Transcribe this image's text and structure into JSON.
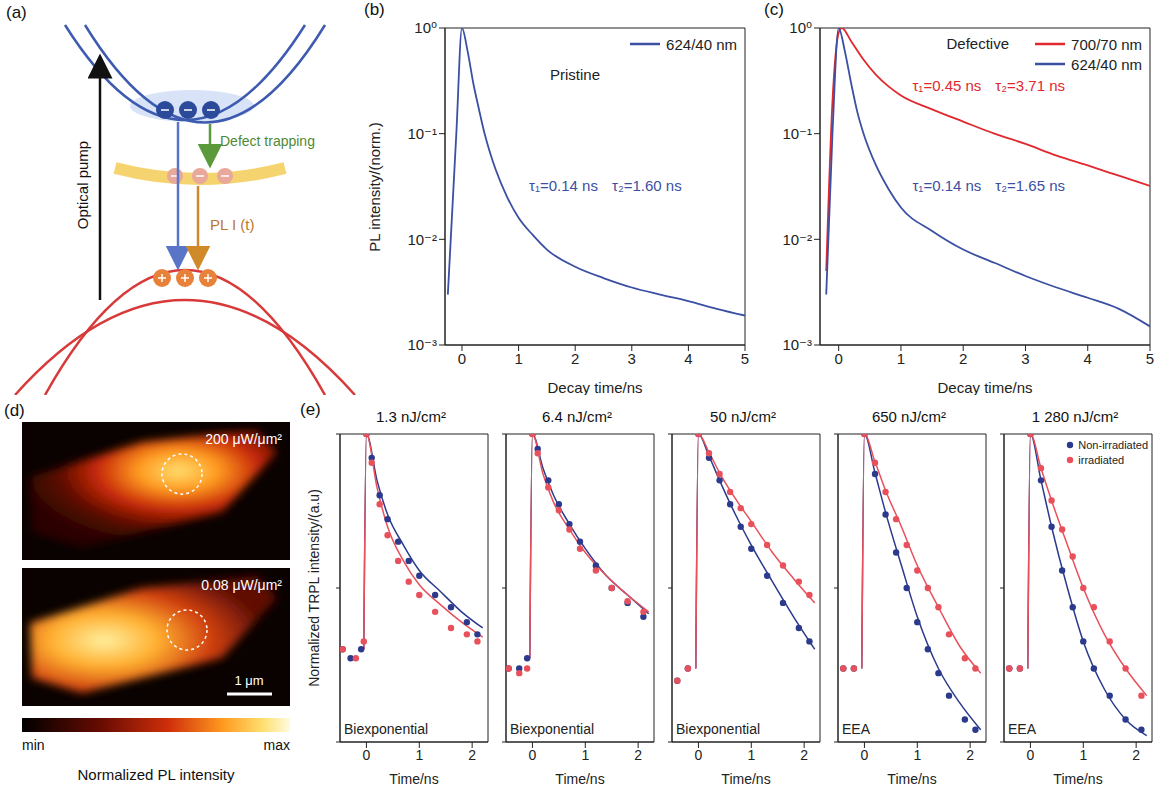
{
  "panel_a": {
    "panel_label": "(a)",
    "pump_label": "Optical pump",
    "trapping_label": "Defect trapping",
    "emission_label": "PL I (t)"
  },
  "panel_d": {
    "panel_label": "(d)",
    "maps": [
      {
        "label": "200 μW/μm²"
      },
      {
        "label": "0.08 μW/μm²"
      }
    ],
    "scale_bar": "1 μm",
    "colorbar": {
      "min_label": "min",
      "max_label": "max",
      "title": "Normalized PL intensity"
    }
  },
  "chart_data": [
    {
      "panel_label": "(b)",
      "type": "line",
      "annotation": "Pristine",
      "x_label": "Decay time/ns",
      "y_label": "PL intensity/(norm.)",
      "log": "y",
      "xlim": [
        -0.3,
        5
      ],
      "xticks": [
        0,
        1,
        2,
        3,
        4,
        5
      ],
      "ylim": [
        0.001,
        1
      ],
      "yticks": [
        {
          "value": 0.001,
          "label": "10⁻³"
        },
        {
          "value": 0.01,
          "label": "10⁻²"
        },
        {
          "value": 0.1,
          "label": "10⁻¹"
        },
        {
          "value": 1,
          "label": "10⁰"
        }
      ],
      "legend": "upper right",
      "series": [
        {
          "name": "624/40 nm",
          "color": "#3b4fa3",
          "tau_labels": [
            "τ₁=0.14 ns",
            "τ₂=1.60 ns"
          ],
          "x": [
            -0.25,
            -0.1,
            0,
            0.1,
            0.2,
            0.3,
            0.4,
            0.5,
            0.6,
            0.8,
            1.0,
            1.25,
            1.5,
            2.0,
            2.5,
            3.0,
            3.5,
            4.0,
            4.5,
            5.0
          ],
          "values": [
            0.003,
            0.1,
            1,
            0.6,
            0.3,
            0.17,
            0.1,
            0.065,
            0.045,
            0.025,
            0.016,
            0.011,
            0.008,
            0.0055,
            0.0043,
            0.0035,
            0.003,
            0.0026,
            0.0022,
            0.0019
          ]
        }
      ]
    },
    {
      "panel_label": "(c)",
      "type": "line",
      "annotation": "Defective",
      "x_label": "Decay time/ns",
      "log": "y",
      "xlim": [
        -0.3,
        5
      ],
      "xticks": [
        0,
        1,
        2,
        3,
        4,
        5
      ],
      "ylim": [
        0.001,
        1
      ],
      "yticks": [
        {
          "value": 0.001,
          "label": "10⁻³"
        },
        {
          "value": 0.01,
          "label": "10⁻²"
        },
        {
          "value": 0.1,
          "label": "10⁻¹"
        },
        {
          "value": 1,
          "label": "10⁰"
        }
      ],
      "legend": "upper right",
      "series": [
        {
          "name": "700/70 nm",
          "color": "#e0282e",
          "tau_labels": [
            "τ₁=0.45 ns",
            "τ₂=3.71 ns"
          ],
          "x": [
            -0.2,
            -0.1,
            0,
            0.05,
            0.2,
            0.4,
            0.6,
            0.8,
            1.0,
            1.5,
            2.0,
            2.5,
            3.0,
            3.5,
            4.0,
            4.5,
            5.0
          ],
          "values": [
            0.005,
            0.2,
            0.9,
            1,
            0.75,
            0.5,
            0.36,
            0.28,
            0.23,
            0.17,
            0.13,
            0.1,
            0.08,
            0.062,
            0.05,
            0.04,
            0.032
          ]
        },
        {
          "name": "624/40 nm",
          "color": "#3b4fa3",
          "tau_labels": [
            "τ₁=0.14 ns",
            "τ₂=1.65 ns"
          ],
          "x": [
            -0.2,
            -0.1,
            0,
            0.1,
            0.2,
            0.3,
            0.4,
            0.6,
            0.8,
            1.0,
            1.5,
            2.0,
            2.5,
            3.0,
            3.5,
            4.0,
            4.5,
            5.0
          ],
          "values": [
            0.003,
            0.1,
            1,
            0.6,
            0.3,
            0.16,
            0.1,
            0.05,
            0.03,
            0.02,
            0.012,
            0.008,
            0.006,
            0.0045,
            0.0035,
            0.0028,
            0.0022,
            0.0015
          ]
        }
      ]
    },
    {
      "panel_label": "(e)",
      "y_label": "Normalized TRPL intensity/(a.u)",
      "type": "line",
      "title": "1.3 nJ/cm²",
      "annotation": "Biexponential",
      "x_label": "Time/ns",
      "log": "y",
      "xlim": [
        -0.5,
        2.3
      ],
      "xticks": [
        0,
        1,
        2
      ],
      "ylim": [
        0.01,
        1
      ],
      "yticks": [
        0.01,
        0.1,
        1
      ],
      "tick_labels": "x",
      "marker": "circle",
      "series": [
        {
          "name": "Non-irradiated",
          "color": "#2b3a8c",
          "x": [
            -0.45,
            -0.3,
            -0.1,
            0,
            0.1,
            0.25,
            0.4,
            0.6,
            0.8,
            1.0,
            1.3,
            1.6,
            1.9,
            2.1
          ],
          "values": [
            0.04,
            0.035,
            0.04,
            1,
            0.7,
            0.4,
            0.28,
            0.2,
            0.15,
            0.12,
            0.09,
            0.075,
            0.06,
            0.05
          ],
          "fit_x": [
            -0.05,
            0,
            0.2,
            0.4,
            0.7,
            1.0,
            1.4,
            1.8,
            2.2
          ],
          "fit": [
            0.04,
            1,
            0.5,
            0.3,
            0.19,
            0.13,
            0.095,
            0.07,
            0.055
          ]
        },
        {
          "name": "irradiated",
          "color": "#e8505b",
          "x": [
            -0.45,
            -0.2,
            -0.05,
            0,
            0.1,
            0.25,
            0.4,
            0.6,
            0.8,
            1.0,
            1.3,
            1.6,
            1.9,
            2.1
          ],
          "values": [
            0.04,
            0.035,
            0.045,
            1,
            0.65,
            0.35,
            0.22,
            0.15,
            0.11,
            0.09,
            0.07,
            0.055,
            0.05,
            0.045
          ],
          "fit_x": [
            -0.05,
            0,
            0.2,
            0.4,
            0.7,
            1.0,
            1.4,
            1.8,
            2.2
          ],
          "fit": [
            0.04,
            1,
            0.45,
            0.25,
            0.15,
            0.105,
            0.078,
            0.06,
            0.048
          ]
        }
      ]
    },
    {
      "type": "line",
      "title": "6.4 nJ/cm²",
      "annotation": "Biexponential",
      "x_label": "Time/ns",
      "log": "y",
      "xlim": [
        -0.5,
        2.3
      ],
      "xticks": [
        0,
        1,
        2
      ],
      "ylim": [
        0.01,
        1
      ],
      "yticks": [
        0.01,
        0.1,
        1
      ],
      "tick_labels": "x",
      "marker": "circle",
      "series": [
        {
          "name": "Non-irradiated",
          "color": "#2b3a8c",
          "x": [
            -0.45,
            -0.25,
            -0.1,
            0,
            0.1,
            0.3,
            0.5,
            0.7,
            0.9,
            1.2,
            1.5,
            1.8,
            2.1
          ],
          "values": [
            0.03,
            0.03,
            0.035,
            1,
            0.8,
            0.5,
            0.35,
            0.26,
            0.2,
            0.14,
            0.1,
            0.08,
            0.065
          ],
          "fit_x": [
            -0.05,
            0,
            0.2,
            0.4,
            0.7,
            1.0,
            1.4,
            1.8,
            2.2
          ],
          "fit": [
            0.035,
            1,
            0.6,
            0.4,
            0.26,
            0.18,
            0.12,
            0.09,
            0.068
          ]
        },
        {
          "name": "irradiated",
          "color": "#e8505b",
          "x": [
            -0.45,
            -0.25,
            -0.1,
            0,
            0.1,
            0.3,
            0.5,
            0.7,
            0.9,
            1.2,
            1.5,
            1.8,
            2.1
          ],
          "values": [
            0.03,
            0.028,
            0.03,
            1,
            0.75,
            0.45,
            0.32,
            0.24,
            0.18,
            0.13,
            0.1,
            0.082,
            0.07
          ],
          "fit_x": [
            -0.05,
            0,
            0.2,
            0.4,
            0.7,
            1.0,
            1.4,
            1.8,
            2.2
          ],
          "fit": [
            0.035,
            1,
            0.55,
            0.36,
            0.24,
            0.17,
            0.12,
            0.09,
            0.07
          ]
        }
      ]
    },
    {
      "type": "line",
      "title": "50 nJ/cm²",
      "annotation": "Biexponential",
      "x_label": "Time/ns",
      "log": "y",
      "xlim": [
        -0.5,
        2.3
      ],
      "xticks": [
        0,
        1,
        2
      ],
      "ylim": [
        0.01,
        1
      ],
      "yticks": [
        0.01,
        0.1,
        1
      ],
      "tick_labels": "x",
      "marker": "circle",
      "series": [
        {
          "name": "Non-irradiated",
          "color": "#2b3a8c",
          "x": [
            -0.4,
            -0.2,
            0,
            0.2,
            0.4,
            0.6,
            0.8,
            1.0,
            1.3,
            1.6,
            1.9,
            2.1
          ],
          "values": [
            0.025,
            0.03,
            1,
            0.7,
            0.5,
            0.35,
            0.25,
            0.18,
            0.12,
            0.08,
            0.055,
            0.045
          ],
          "fit_x": [
            -0.05,
            0,
            0.2,
            0.4,
            0.7,
            1.0,
            1.4,
            1.8,
            2.2
          ],
          "fit": [
            0.03,
            1,
            0.72,
            0.5,
            0.3,
            0.19,
            0.11,
            0.065,
            0.04
          ]
        },
        {
          "name": "irradiated",
          "color": "#e8505b",
          "x": [
            -0.4,
            -0.2,
            0,
            0.2,
            0.4,
            0.6,
            0.8,
            1.0,
            1.3,
            1.6,
            1.9,
            2.1
          ],
          "values": [
            0.025,
            0.03,
            1,
            0.75,
            0.55,
            0.42,
            0.33,
            0.26,
            0.19,
            0.14,
            0.11,
            0.09
          ],
          "fit_x": [
            -0.05,
            0,
            0.2,
            0.4,
            0.7,
            1.0,
            1.4,
            1.8,
            2.2
          ],
          "fit": [
            0.03,
            1,
            0.76,
            0.56,
            0.38,
            0.27,
            0.17,
            0.115,
            0.08
          ]
        }
      ]
    },
    {
      "type": "line",
      "title": "650 nJ/cm²",
      "annotation": "EEA",
      "x_label": "Time/ns",
      "log": "y",
      "xlim": [
        -0.5,
        2.3
      ],
      "xticks": [
        0,
        1,
        2
      ],
      "ylim": [
        0.01,
        1
      ],
      "yticks": [
        0.01,
        0.1,
        1
      ],
      "tick_labels": "x",
      "marker": "circle",
      "series": [
        {
          "name": "Non-irradiated",
          "color": "#2b3a8c",
          "x": [
            -0.4,
            -0.2,
            0,
            0.2,
            0.4,
            0.6,
            0.8,
            1.0,
            1.2,
            1.4,
            1.6,
            1.9,
            2.1
          ],
          "values": [
            0.03,
            0.03,
            1,
            0.55,
            0.3,
            0.17,
            0.1,
            0.06,
            0.04,
            0.028,
            0.02,
            0.014,
            0.012
          ],
          "fit_x": [
            -0.05,
            0,
            0.2,
            0.4,
            0.7,
            1.0,
            1.4,
            1.8,
            2.2
          ],
          "fit": [
            0.03,
            1,
            0.56,
            0.31,
            0.14,
            0.065,
            0.03,
            0.018,
            0.012
          ]
        },
        {
          "name": "irradiated",
          "color": "#e8505b",
          "x": [
            -0.4,
            -0.2,
            0,
            0.2,
            0.4,
            0.6,
            0.8,
            1.0,
            1.2,
            1.4,
            1.6,
            1.9,
            2.1
          ],
          "values": [
            0.03,
            0.03,
            1,
            0.65,
            0.42,
            0.28,
            0.19,
            0.13,
            0.1,
            0.075,
            0.05,
            0.035,
            0.03
          ],
          "fit_x": [
            -0.05,
            0,
            0.2,
            0.4,
            0.7,
            1.0,
            1.4,
            1.8,
            2.2
          ],
          "fit": [
            0.03,
            1,
            0.66,
            0.43,
            0.25,
            0.14,
            0.075,
            0.042,
            0.028
          ]
        }
      ]
    },
    {
      "type": "line",
      "title": "1 280 nJ/cm²",
      "annotation": "EEA",
      "x_label": "Time/ns",
      "log": "y",
      "xlim": [
        -0.5,
        2.3
      ],
      "xticks": [
        0,
        1,
        2
      ],
      "ylim": [
        0.01,
        1
      ],
      "yticks": [
        0.01,
        0.1,
        1
      ],
      "tick_labels": "x",
      "marker": "circle",
      "legend": "upper right",
      "series": [
        {
          "name": "Non-irradiated",
          "color": "#2b3a8c",
          "x": [
            -0.4,
            -0.2,
            0,
            0.2,
            0.4,
            0.6,
            0.8,
            1.0,
            1.2,
            1.5,
            1.8,
            2.1
          ],
          "values": [
            0.03,
            0.03,
            1,
            0.5,
            0.25,
            0.13,
            0.075,
            0.045,
            0.03,
            0.02,
            0.014,
            0.012
          ],
          "fit_x": [
            -0.05,
            0,
            0.2,
            0.4,
            0.7,
            1.0,
            1.4,
            1.8,
            2.2
          ],
          "fit": [
            0.03,
            1,
            0.5,
            0.25,
            0.1,
            0.045,
            0.022,
            0.014,
            0.011
          ]
        },
        {
          "name": "irradiated",
          "color": "#e8505b",
          "x": [
            -0.4,
            -0.2,
            0,
            0.2,
            0.4,
            0.6,
            0.8,
            1.0,
            1.2,
            1.5,
            1.8,
            2.1
          ],
          "values": [
            0.03,
            0.03,
            1,
            0.6,
            0.37,
            0.24,
            0.16,
            0.1,
            0.075,
            0.045,
            0.03,
            0.02
          ],
          "fit_x": [
            -0.05,
            0,
            0.2,
            0.4,
            0.7,
            1.0,
            1.4,
            1.8,
            2.2
          ],
          "fit": [
            0.03,
            1,
            0.6,
            0.37,
            0.19,
            0.1,
            0.05,
            0.03,
            0.02
          ]
        }
      ]
    }
  ]
}
